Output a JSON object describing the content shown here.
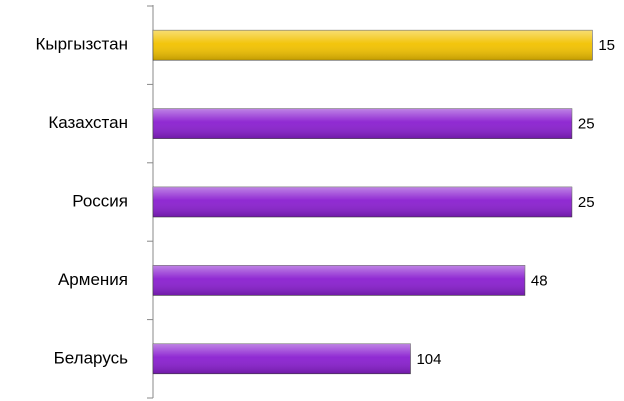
{
  "chart_data": {
    "type": "bar",
    "orientation": "horizontal",
    "categories": [
      "Кыргызстан",
      "Казахстан",
      "Россия",
      "Армения",
      "Беларусь"
    ],
    "values": [
      15,
      25,
      25,
      48,
      104
    ],
    "colors": [
      "#f2c200",
      "#8a1fd0",
      "#8a1fd0",
      "#8a1fd0",
      "#8a1fd0"
    ],
    "xlim": [
      230,
      0
    ]
  }
}
